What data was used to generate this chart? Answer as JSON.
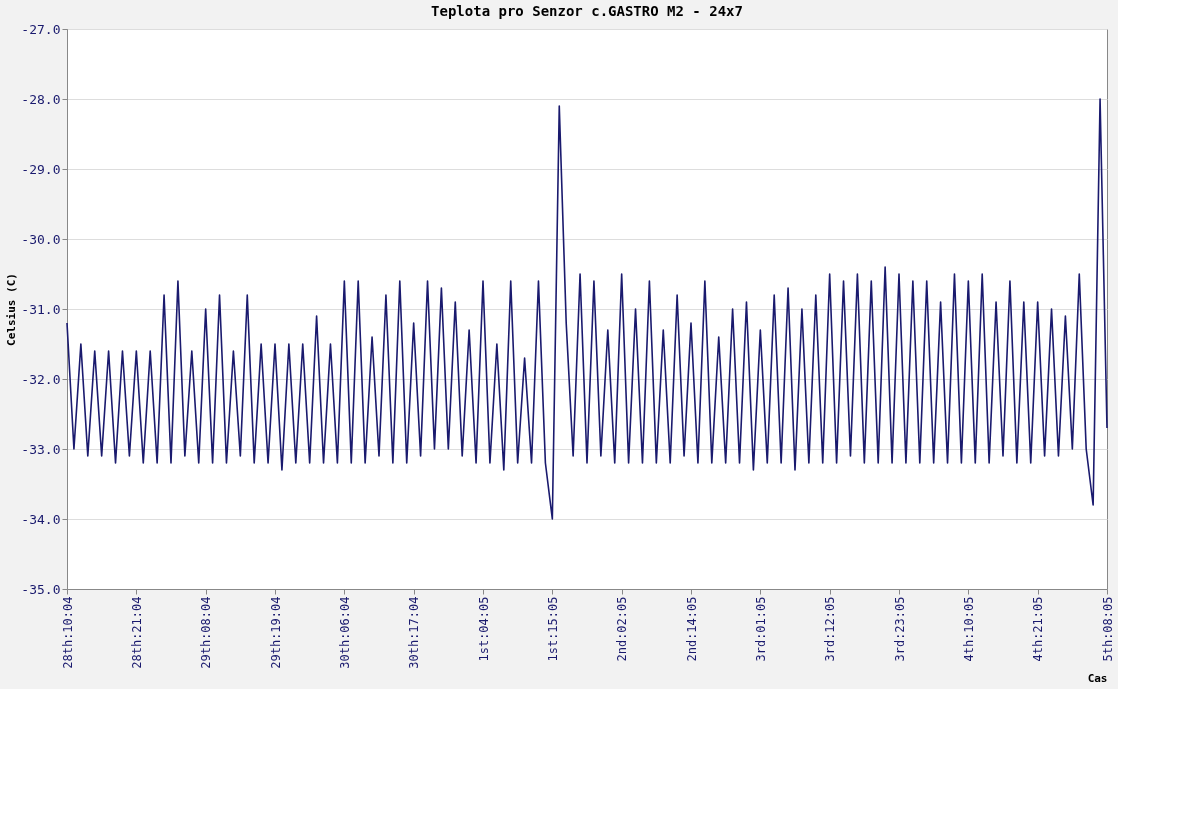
{
  "chart_data": {
    "type": "line",
    "title": "Teplota pro Senzor c.GASTRO M2 - 24x7",
    "xlabel": "Cas",
    "ylabel": "Celsius (C)",
    "categories": [
      "28th:10:04",
      null,
      null,
      null,
      null,
      null,
      null,
      null,
      null,
      null,
      "28th:21:04",
      null,
      null,
      null,
      null,
      null,
      null,
      null,
      null,
      null,
      "29th:08:04",
      null,
      null,
      null,
      null,
      null,
      null,
      null,
      null,
      null,
      "29th:19:04",
      null,
      null,
      null,
      null,
      null,
      null,
      null,
      null,
      null,
      "30th:06:04",
      null,
      null,
      null,
      null,
      null,
      null,
      null,
      null,
      null,
      "30th:17:04",
      null,
      null,
      null,
      null,
      null,
      null,
      null,
      null,
      null,
      "1st:04:05",
      null,
      null,
      null,
      null,
      null,
      null,
      null,
      null,
      null,
      "1st:15:05",
      null,
      null,
      null,
      null,
      null,
      null,
      null,
      null,
      null,
      "2nd:02:05",
      null,
      null,
      null,
      null,
      null,
      null,
      null,
      null,
      null,
      "2nd:14:05",
      null,
      null,
      null,
      null,
      null,
      null,
      null,
      null,
      null,
      "3rd:01:05",
      null,
      null,
      null,
      null,
      null,
      null,
      null,
      null,
      null,
      "3rd:12:05",
      null,
      null,
      null,
      null,
      null,
      null,
      null,
      null,
      null,
      "3rd:23:05",
      null,
      null,
      null,
      null,
      null,
      null,
      null,
      null,
      null,
      "4th:10:05",
      null,
      null,
      null,
      null,
      null,
      null,
      null,
      null,
      null,
      "4th:21:05",
      null,
      null,
      null,
      null,
      null,
      null,
      null,
      null,
      null,
      "5th:08:05"
    ],
    "series": [
      {
        "color": "#1a1a6e",
        "values": [
          -31.2,
          -33.0,
          -31.5,
          -33.1,
          -31.6,
          -33.1,
          -31.6,
          -33.2,
          -31.6,
          -33.1,
          -31.6,
          -33.2,
          -31.6,
          -33.2,
          -30.8,
          -33.2,
          -30.6,
          -33.1,
          -31.6,
          -33.2,
          -31.0,
          -33.2,
          -30.8,
          -33.2,
          -31.6,
          -33.1,
          -30.8,
          -33.2,
          -31.5,
          -33.2,
          -31.5,
          -33.3,
          -31.5,
          -33.2,
          -31.5,
          -33.2,
          -31.1,
          -33.2,
          -31.5,
          -33.2,
          -30.6,
          -33.2,
          -30.6,
          -33.2,
          -31.4,
          -33.1,
          -30.8,
          -33.2,
          -30.6,
          -33.2,
          -31.2,
          -33.1,
          -30.6,
          -33.0,
          -30.7,
          -33.0,
          -30.9,
          -33.1,
          -31.3,
          -33.2,
          -30.6,
          -33.2,
          -31.5,
          -33.3,
          -30.6,
          -33.2,
          -31.7,
          -33.2,
          -30.6,
          -33.2,
          -34.0,
          -28.1,
          -31.2,
          -33.1,
          -30.5,
          -33.2,
          -30.6,
          -33.1,
          -31.3,
          -33.2,
          -30.5,
          -33.2,
          -31.0,
          -33.2,
          -30.6,
          -33.2,
          -31.3,
          -33.2,
          -30.8,
          -33.1,
          -31.2,
          -33.2,
          -30.6,
          -33.2,
          -31.4,
          -33.2,
          -31.0,
          -33.2,
          -30.9,
          -33.3,
          -31.3,
          -33.2,
          -30.8,
          -33.2,
          -30.7,
          -33.3,
          -31.0,
          -33.2,
          -30.8,
          -33.2,
          -30.5,
          -33.2,
          -30.6,
          -33.1,
          -30.5,
          -33.2,
          -30.6,
          -33.2,
          -30.4,
          -33.2,
          -30.5,
          -33.2,
          -30.6,
          -33.2,
          -30.6,
          -33.2,
          -30.9,
          -33.2,
          -30.5,
          -33.2,
          -30.6,
          -33.2,
          -30.5,
          -33.2,
          -30.9,
          -33.1,
          -30.6,
          -33.2,
          -30.9,
          -33.2,
          -30.9,
          -33.1,
          -31.0,
          -33.1,
          -31.1,
          -33.0,
          -30.5,
          -33.0,
          -33.8,
          -28.0,
          -32.7
        ]
      }
    ],
    "ylim": [
      -35,
      -27
    ],
    "yticks": [
      {
        "value": -35,
        "label": "-35.0"
      },
      {
        "value": -34,
        "label": "-34.0"
      },
      {
        "value": -33,
        "label": "-33.0"
      },
      {
        "value": -32,
        "label": "-32.0"
      },
      {
        "value": -31,
        "label": "-31.0"
      },
      {
        "value": -30,
        "label": "-30.0"
      },
      {
        "value": -29,
        "label": "-29.0"
      },
      {
        "value": -28,
        "label": "-28.0"
      },
      {
        "value": -27,
        "label": "-27.0"
      }
    ],
    "grid": "y",
    "marker": "none",
    "line_style": "solid"
  }
}
